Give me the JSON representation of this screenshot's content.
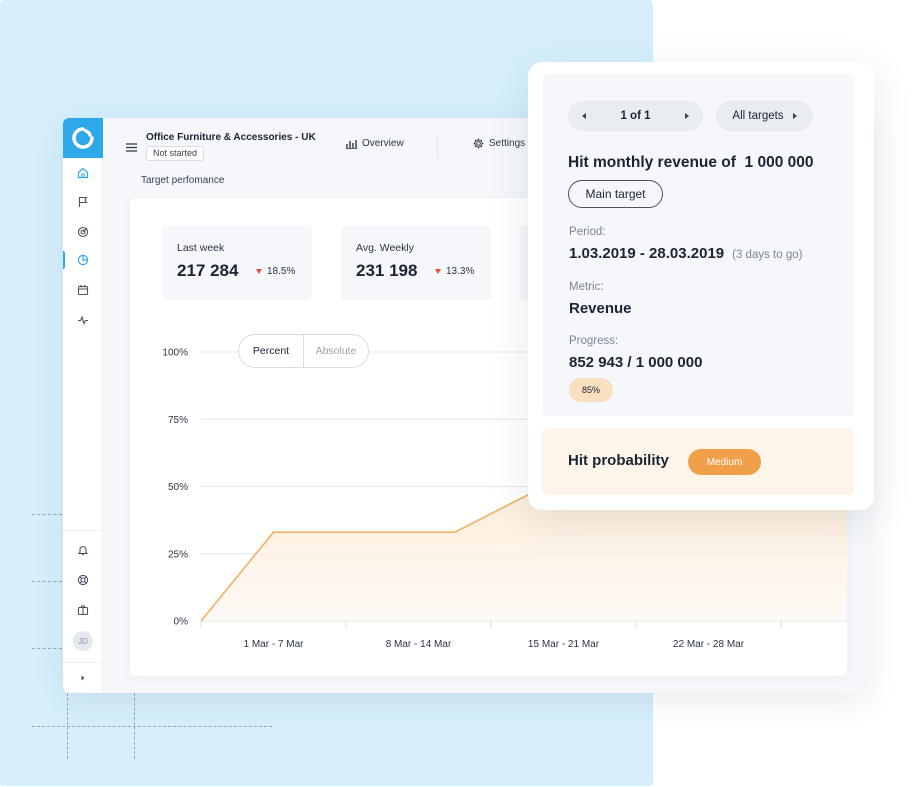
{
  "app": {
    "project_title": "Office Furniture & Accessories - UK",
    "status": "Not started",
    "nav": {
      "overview_label": "Overview",
      "settings_label": "Settings"
    },
    "section_label": "Target perfomance",
    "avatar_initials": "JD",
    "accent_color": "#2ea8e8"
  },
  "kpis": [
    {
      "label": "Last week",
      "value": "217 284",
      "delta": "18.5%",
      "trend": "down"
    },
    {
      "label": "Avg. Weekly",
      "value": "231 198",
      "delta": "13.3%",
      "trend": "down"
    }
  ],
  "chart_toggle": {
    "options": [
      "Percent",
      "Absolute"
    ],
    "selected": "Percent"
  },
  "chart_data": {
    "type": "area",
    "categories": [
      "1 Mar - 7 Mar",
      "8 Mar - 14 Mar",
      "15 Mar - 21 Mar",
      "22 Mar - 28 Mar"
    ],
    "x": [
      0,
      0.5,
      1.75,
      2.55
    ],
    "values": [
      0,
      33,
      33,
      55
    ],
    "ylim": [
      0,
      100
    ],
    "yticks": [
      "0%",
      "25%",
      "50%",
      "75%",
      "100%"
    ],
    "ytick_values": [
      0,
      25,
      50,
      75,
      100
    ],
    "grid": true,
    "series_color": "#f0b060"
  },
  "target_popup": {
    "pager_label": "1 of 1",
    "targets_button": "All targets",
    "goal_title": "Hit monthly revenue of  1 000 000",
    "main_target_label": "Main target",
    "period_label": "Period:",
    "period_value": "1.03.2019 - 28.03.2019",
    "period_days_left": "(3 days to go)",
    "metric_label": "Metric:",
    "metric_value": "Revenue",
    "progress_label": "Progress:",
    "progress_value": "852 943 / 1 000 000",
    "progress_percent": "85%",
    "probability_label": "Hit probability",
    "probability_value": "Medium",
    "probability_color": "#f0a04b"
  }
}
